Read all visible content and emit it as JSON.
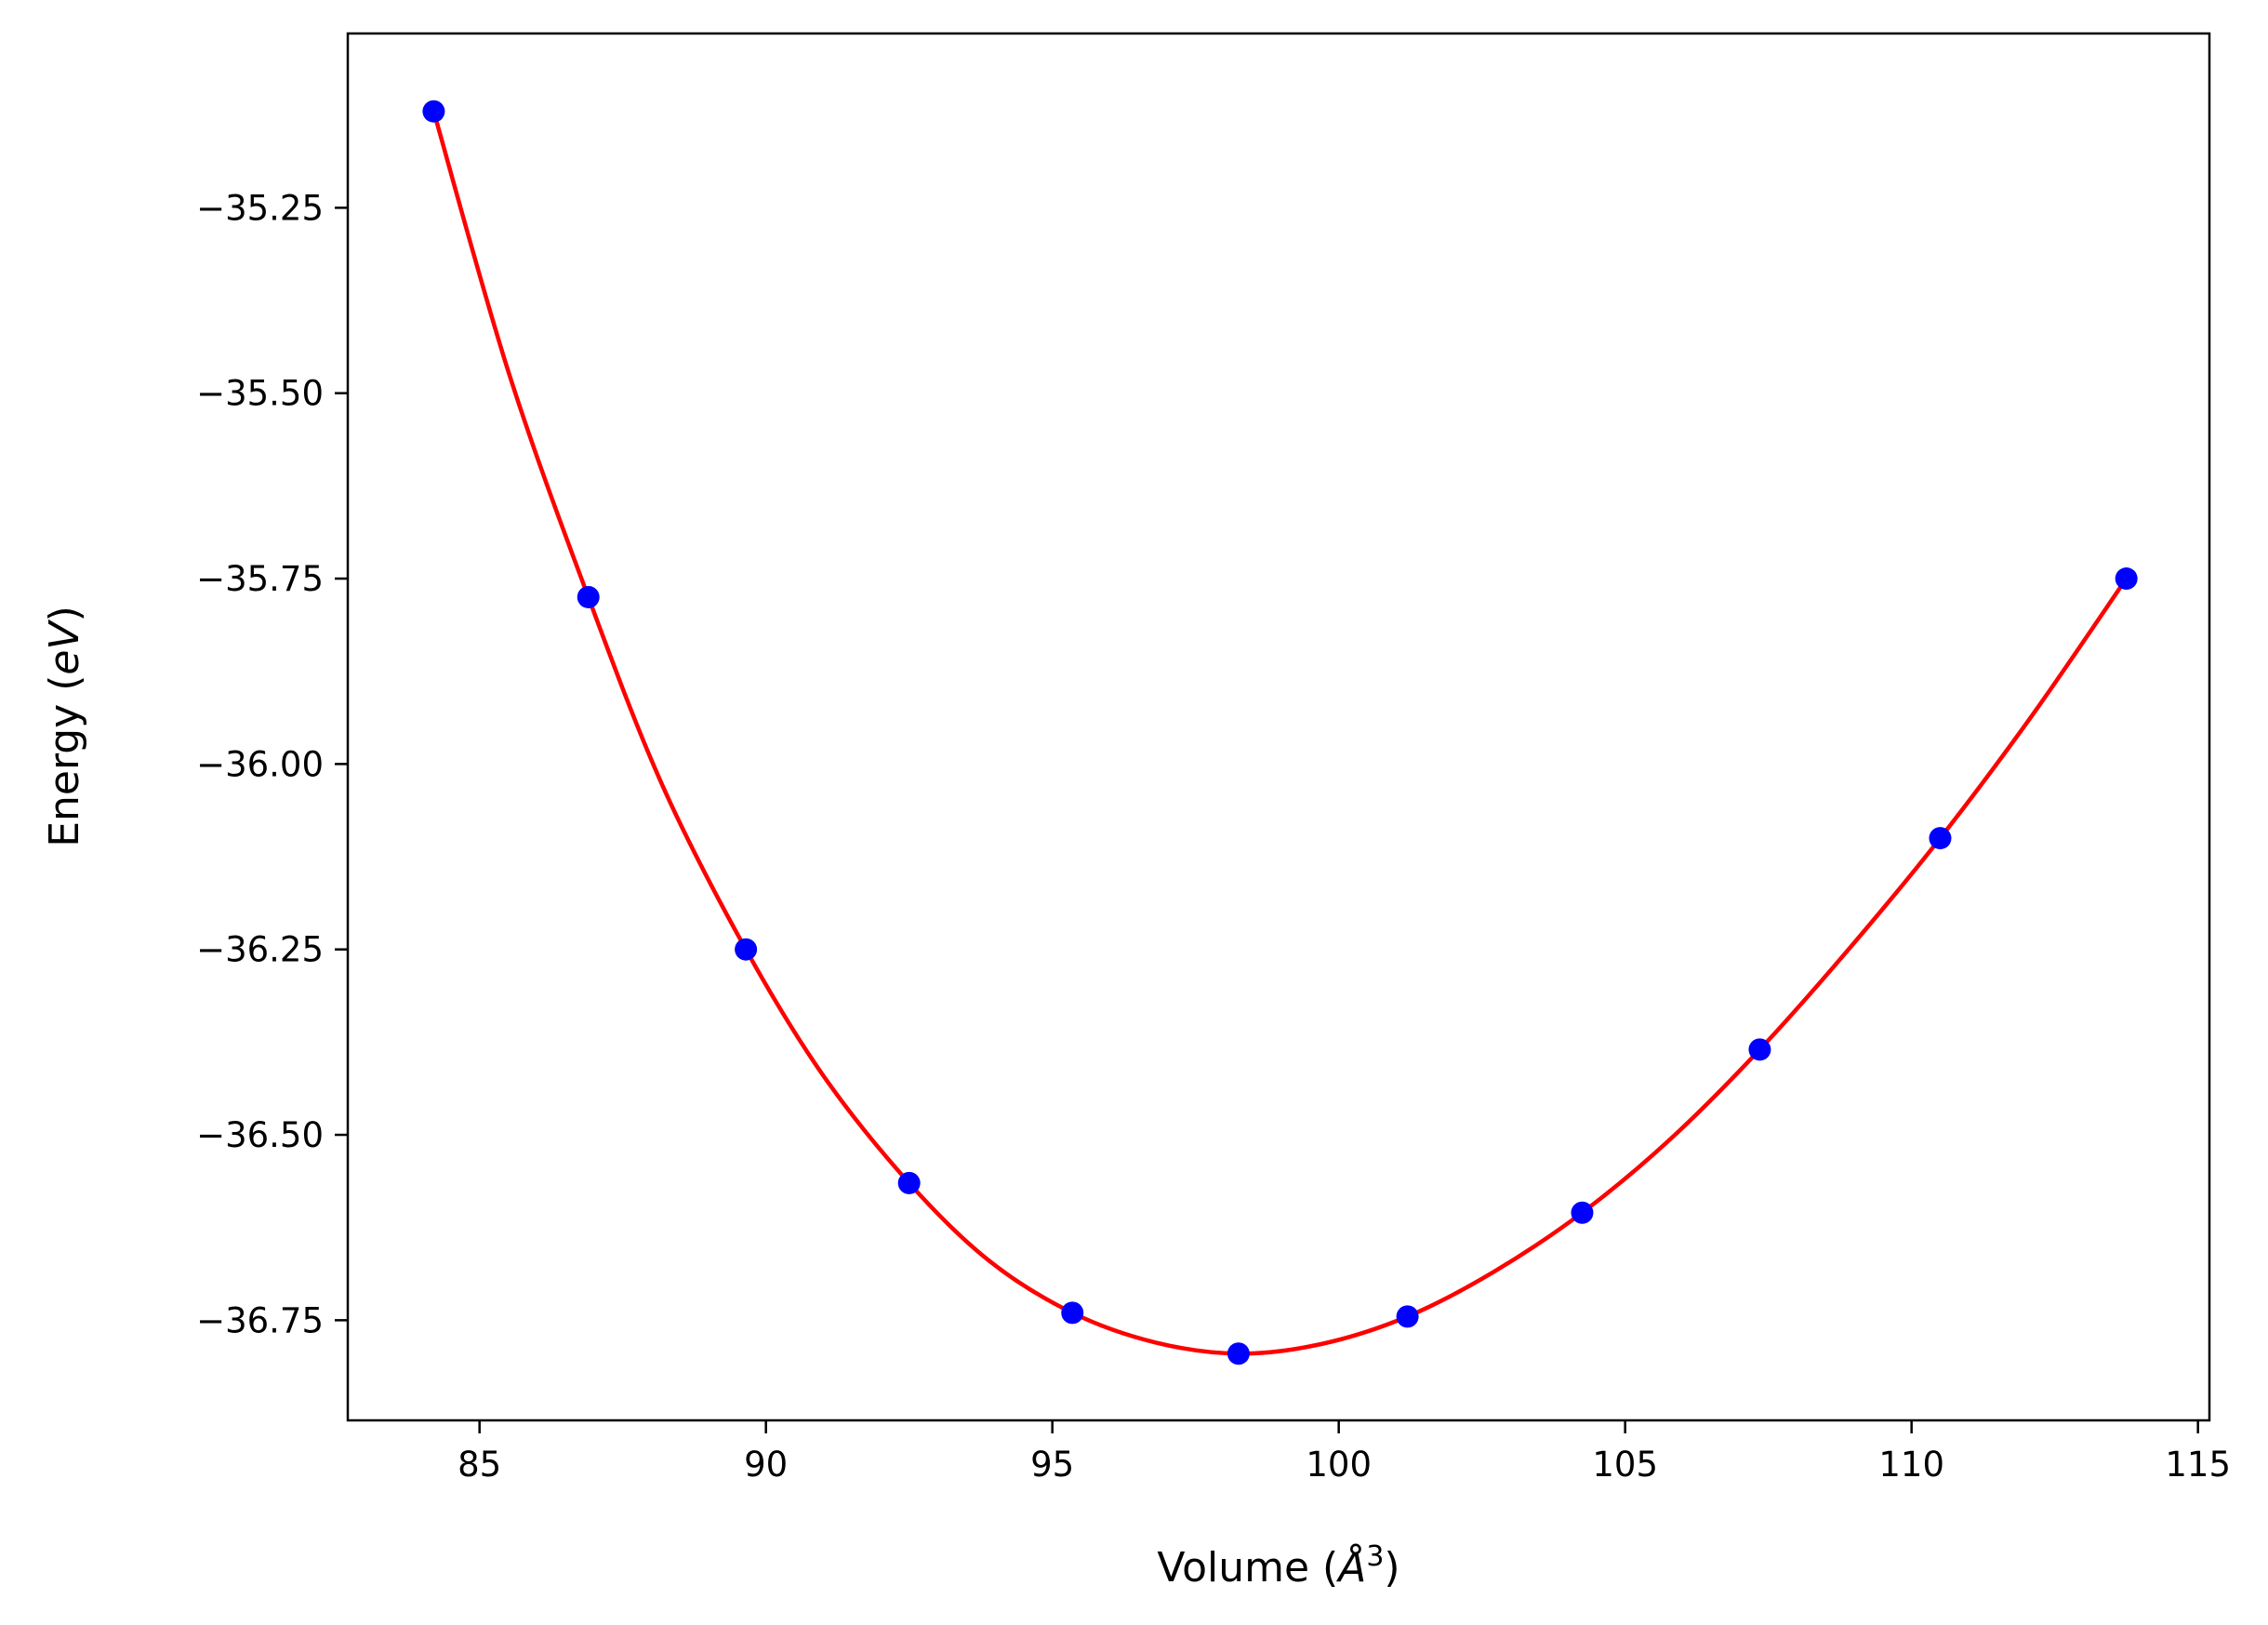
{
  "chart_data": {
    "type": "scatter",
    "title": "",
    "xlabel": {
      "prefix": "Volume (",
      "symbol": "Å",
      "sup": "3",
      "suffix": ")"
    },
    "ylabel": {
      "prefix": "Energy (",
      "unit": "eV",
      "suffix": ")"
    },
    "xlim": [
      82.7,
      115.2
    ],
    "ylim": [
      -36.885,
      -35.015
    ],
    "xticks": [
      85,
      90,
      95,
      100,
      105,
      110,
      115
    ],
    "xtick_labels": [
      "85",
      "90",
      "95",
      "100",
      "105",
      "110",
      "115"
    ],
    "yticks": [
      -35.25,
      -35.5,
      -35.75,
      -36.0,
      -36.25,
      -36.5,
      -36.75
    ],
    "ytick_labels": [
      "−35.25",
      "−35.50",
      "−35.75",
      "−36.00",
      "−36.25",
      "−36.50",
      "−36.75"
    ],
    "grid": false,
    "series": [
      {
        "kind": "points",
        "color": "#0000ff",
        "x": [
          84.2,
          86.9,
          89.65,
          92.5,
          95.35,
          98.25,
          101.2,
          104.25,
          107.35,
          110.5,
          113.75
        ],
        "y": [
          -35.12,
          -35.775,
          -36.25,
          -36.565,
          -36.74,
          -36.795,
          -36.745,
          -36.605,
          -36.385,
          -36.1,
          -35.75
        ]
      },
      {
        "kind": "fit-curve",
        "color": "#ff0000",
        "x": [
          84.2,
          85.5,
          86.9,
          88.2,
          89.65,
          91.0,
          92.5,
          93.9,
          95.35,
          96.8,
          98.25,
          99.7,
          101.2,
          102.7,
          104.25,
          105.8,
          107.35,
          108.9,
          110.5,
          112.1,
          113.75
        ],
        "y": [
          -35.12,
          -35.47,
          -35.775,
          -36.03,
          -36.25,
          -36.42,
          -36.565,
          -36.67,
          -36.74,
          -36.78,
          -36.795,
          -36.782,
          -36.745,
          -36.685,
          -36.605,
          -36.505,
          -36.385,
          -36.25,
          -36.1,
          -35.935,
          -35.75
        ]
      }
    ]
  }
}
